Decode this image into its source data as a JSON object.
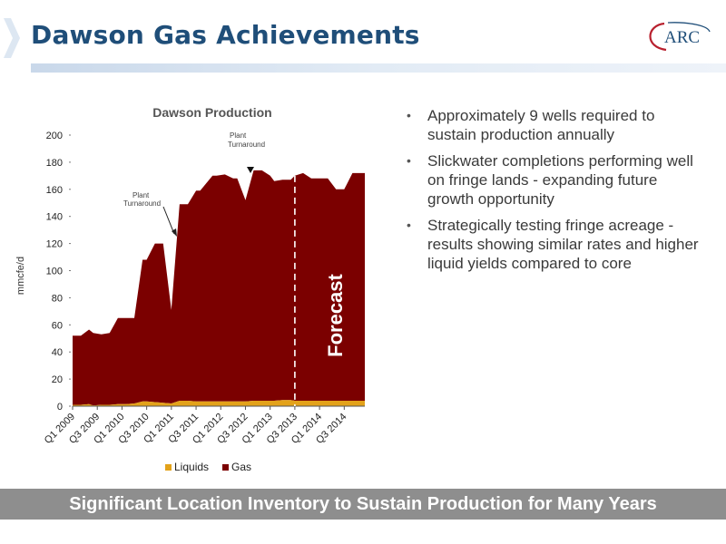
{
  "slide": {
    "title": "Dawson Gas Achievements",
    "logo_text": "ARC",
    "footer": "Significant Location Inventory to Sustain Production for Many Years",
    "bullets": [
      "Approximately 9 wells required to sustain production annually",
      "Slickwater completions performing well on fringe lands - expanding future growth opportunity",
      "Strategically testing fringe acreage - results showing similar rates and higher liquid yields compared to core"
    ]
  },
  "colors": {
    "title": "#1f4e79",
    "gas": "#7b0000",
    "liquids": "#e3a21a",
    "footer_band": "#8e8e8e",
    "logo_red": "#b8202e",
    "logo_blue": "#1f4e79"
  },
  "chart_data": {
    "type": "area",
    "stacked": true,
    "title": "Dawson Production",
    "ylabel": "mmcfe/d",
    "xlabel": "",
    "ylim": [
      0,
      200
    ],
    "yticks": [
      "0",
      "20",
      "40",
      "60",
      "80",
      "100",
      "120",
      "140",
      "160",
      "180",
      "200"
    ],
    "grid": false,
    "legend_position": "bottom",
    "x_tick_labels": [
      "Q1 2009",
      "Q3 2009",
      "Q1 2010",
      "Q3 2010",
      "Q1 2011",
      "Q3 2011",
      "Q1 2012",
      "Q3 2012",
      "Q1 2013",
      "Q3 2013",
      "Q1 2014",
      "Q3 2014"
    ],
    "annotations": [
      {
        "text": "Plant Turnaround",
        "near": "Q1 2011"
      },
      {
        "text": "Plant Turnaround",
        "near": "Q3 2012"
      },
      {
        "text": "Forecast",
        "start": "Q3 2013"
      }
    ],
    "forecast_start_month": 55,
    "months": [
      1,
      3,
      5,
      6,
      8,
      10,
      12,
      14,
      16,
      18,
      19,
      21,
      23,
      25,
      27,
      29,
      31,
      32,
      35,
      36,
      38,
      40,
      41,
      43,
      45,
      47,
      49,
      50,
      52,
      54,
      55,
      57,
      59,
      61,
      63,
      65,
      67,
      69,
      71,
      72
    ],
    "series": [
      {
        "name": "Liquids",
        "values": [
          1,
          1,
          1.5,
          0.5,
          1,
          1,
          1.5,
          1.5,
          2,
          3.5,
          3.5,
          3,
          2.5,
          2,
          4,
          4,
          3.5,
          3.5,
          3.5,
          3.5,
          3.5,
          3.5,
          3.5,
          3.5,
          4,
          4,
          4,
          4,
          4.5,
          4.5,
          4,
          4,
          4,
          4,
          4,
          4,
          4,
          4,
          4,
          4
        ]
      },
      {
        "name": "Gas",
        "values": [
          51,
          51,
          55,
          53.5,
          52,
          53,
          63.5,
          63.5,
          63,
          104.5,
          104.5,
          117,
          117.5,
          69,
          145,
          145,
          155.5,
          155.5,
          166.5,
          166.5,
          167.5,
          164.5,
          164.5,
          148.5,
          170,
          170,
          166,
          162,
          162.5,
          162.5,
          166,
          168,
          164,
          164,
          164,
          156,
          156,
          168,
          168,
          168
        ]
      }
    ]
  }
}
